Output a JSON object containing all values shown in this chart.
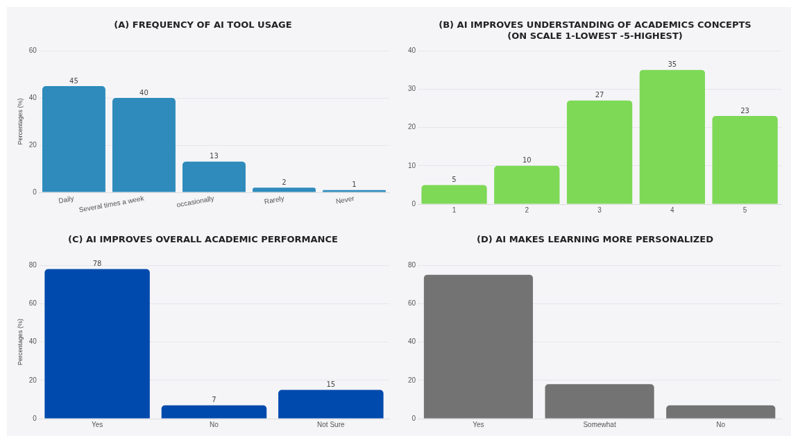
{
  "chart_data": [
    {
      "type": "bar",
      "title": "(A) FREQUENCY OF AI TOOL USAGE",
      "ylabel": "Percentages (%)",
      "categories": [
        "Daily",
        "Several times a week",
        "occasionally",
        "Rarely",
        "Never"
      ],
      "values": [
        45,
        40,
        13,
        2,
        1
      ],
      "color": "#2e8bbb",
      "ylim": [
        0,
        60
      ],
      "yticks": [
        0,
        20,
        40,
        60
      ],
      "grid": "y",
      "data_labels": true
    },
    {
      "type": "bar",
      "title": "(B) AI IMPROVES UNDERSTANDING OF ACADEMICS CONCEPTS (ON SCALE 1-LOWEST -5-HIGHEST)",
      "categories": [
        "1",
        "2",
        "3",
        "4",
        "5"
      ],
      "values": [
        5,
        10,
        27,
        35,
        23
      ],
      "color": "#7ed957",
      "ylim": [
        0,
        40
      ],
      "yticks": [
        0,
        10,
        20,
        30,
        40
      ],
      "grid": "y",
      "data_labels": true
    },
    {
      "type": "bar",
      "title": "(C) AI IMPROVES OVERALL ACADEMIC PERFORMANCE",
      "ylabel": "Percentages (%)",
      "categories": [
        "Yes",
        "No",
        "Not Sure"
      ],
      "values": [
        78,
        7,
        15
      ],
      "color": "#004aad",
      "ylim": [
        0,
        80
      ],
      "yticks": [
        0,
        20,
        40,
        60,
        80
      ],
      "grid": "y",
      "data_labels": true
    },
    {
      "type": "bar",
      "title": "(D) AI MAKES LEARNING MORE PERSONALIZED",
      "categories": [
        "Yes",
        "Somewhat",
        "No"
      ],
      "values": [
        75,
        18,
        7
      ],
      "color": "#737373",
      "ylim": [
        0,
        80
      ],
      "yticks": [
        0,
        20,
        40,
        60,
        80
      ],
      "grid": "y"
    }
  ]
}
